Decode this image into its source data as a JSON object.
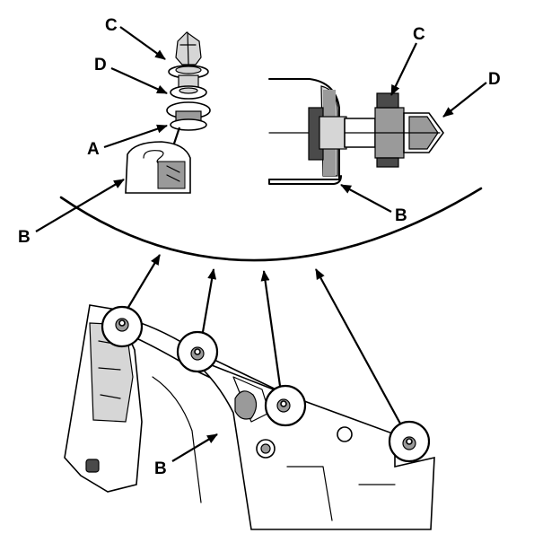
{
  "labels": {
    "clip_pin_left": "C",
    "washer_left": "D",
    "slot_left": "A",
    "trim_left": "B",
    "clip_pin_right": "C",
    "washer_right": "D",
    "trim_right_detail": "B",
    "trim_panel_main": "B"
  },
  "icons": {
    "arrowhead": "filled-triangle-arrow"
  },
  "colors": {
    "ink": "#000000",
    "shade": "#9a9a9a",
    "light_shade": "#d6d6d6",
    "background": "#ffffff"
  }
}
